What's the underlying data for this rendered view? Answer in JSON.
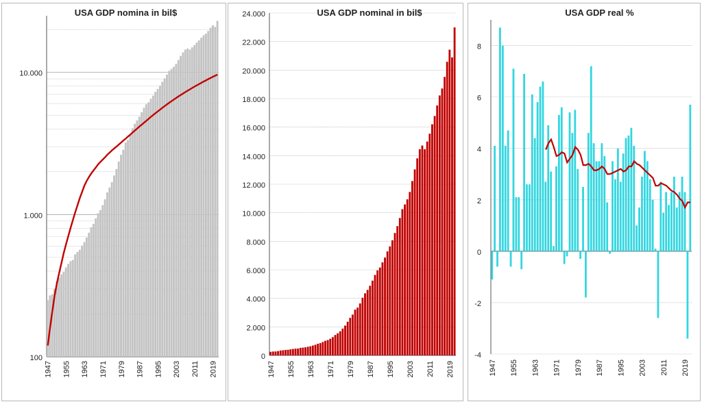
{
  "colors": {
    "gray_bar": "#c3c3c3",
    "red_line": "#c00000",
    "red_bar": "#c00000",
    "cyan_bar": "#33d6e0",
    "grid": "#a0a0a0"
  },
  "x_tick_labels": [
    "1947",
    "1955",
    "1963",
    "1971",
    "1979",
    "1987",
    "1995",
    "2003",
    "2011",
    "2019"
  ],
  "chart_data": [
    {
      "type": "bar",
      "title": "USA GDP nomina  in bil$",
      "yscale": "log",
      "ylim": [
        100,
        25000
      ],
      "y_tick_labels": [
        "100",
        "1.000",
        "10.000"
      ],
      "x_range": [
        1947,
        2021
      ],
      "series": [
        {
          "values": [
            250,
            270,
            275,
            300,
            340,
            360,
            380,
            395,
            425,
            450,
            470,
            480,
            525,
            545,
            565,
            605,
            640,
            690,
            745,
            815,
            860,
            940,
            1020,
            1075,
            1165,
            1280,
            1430,
            1550,
            1690,
            1880,
            2090,
            2360,
            2630,
            2860,
            3210,
            3350,
            3640,
            4040,
            4350,
            4590,
            4880,
            5240,
            5640,
            5960,
            6160,
            6520,
            6860,
            7290,
            7640,
            8070,
            8580,
            9060,
            9630,
            10250,
            10580,
            10940,
            11460,
            12220,
            13040,
            13810,
            14450,
            14710,
            14450,
            14990,
            15540,
            16200,
            16780,
            17520,
            18220,
            18710,
            19520,
            20580,
            21430,
            20890,
            22990
          ]
        },
        {
          "values": [
            120,
            160,
            210,
            270,
            330,
            390,
            460,
            540,
            620,
            710,
            810,
            920,
            1040,
            1170,
            1310,
            1450,
            1600,
            1730,
            1840,
            1950,
            2050,
            2150,
            2260,
            2350,
            2440,
            2530,
            2640,
            2730,
            2830,
            2920,
            3010,
            3110,
            3210,
            3320,
            3420,
            3540,
            3650,
            3780,
            3900,
            4030,
            4160,
            4290,
            4430,
            4570,
            4720,
            4870,
            5020,
            5170,
            5320,
            5480,
            5640,
            5800,
            5960,
            6120,
            6280,
            6440,
            6610,
            6770,
            6940,
            7100,
            7270,
            7430,
            7600,
            7770,
            7940,
            8110,
            8280,
            8450,
            8620,
            8790,
            8960,
            9140,
            9310,
            9480,
            9650
          ]
        }
      ]
    },
    {
      "type": "bar",
      "title": "USA GDP nominal in bil$",
      "ylim": [
        0,
        24000
      ],
      "y_tick_labels": [
        "0",
        "2.000",
        "4.000",
        "6.000",
        "8.000",
        "10.000",
        "12.000",
        "14.000",
        "16.000",
        "18.000",
        "20.000",
        "22.000",
        "24.000"
      ],
      "x_range": [
        1947,
        2021
      ],
      "values": [
        250,
        270,
        275,
        300,
        340,
        360,
        380,
        395,
        425,
        450,
        470,
        480,
        525,
        545,
        565,
        605,
        640,
        690,
        745,
        815,
        860,
        940,
        1020,
        1075,
        1165,
        1280,
        1430,
        1550,
        1690,
        1880,
        2090,
        2360,
        2630,
        2860,
        3210,
        3350,
        3640,
        4040,
        4350,
        4590,
        4880,
        5240,
        5640,
        5960,
        6160,
        6520,
        6860,
        7290,
        7640,
        8070,
        8580,
        9060,
        9630,
        10250,
        10580,
        10940,
        11460,
        12220,
        13040,
        13810,
        14450,
        14710,
        14450,
        14990,
        15540,
        16200,
        16780,
        17520,
        18220,
        18710,
        19520,
        20580,
        21430,
        20890,
        22990
      ]
    },
    {
      "type": "bar",
      "title": "USA GDP real %",
      "ylim": [
        -4,
        9
      ],
      "y_tick_labels": [
        "-4",
        "-2",
        "0",
        "2",
        "4",
        "6",
        "8"
      ],
      "x_range": [
        1947,
        2021
      ],
      "series": [
        {
          "values": [
            -1.1,
            4.1,
            -0.6,
            8.7,
            8.0,
            4.1,
            4.7,
            -0.6,
            7.1,
            2.1,
            2.1,
            -0.7,
            6.9,
            2.6,
            2.6,
            6.1,
            4.4,
            5.8,
            6.4,
            6.6,
            2.7,
            4.9,
            3.1,
            0.2,
            3.3,
            5.3,
            5.6,
            -0.5,
            -0.2,
            5.4,
            4.6,
            5.5,
            3.2,
            -0.3,
            2.5,
            -1.8,
            4.6,
            7.2,
            4.2,
            3.5,
            3.5,
            4.2,
            3.7,
            1.9,
            -0.1,
            3.5,
            2.8,
            4.0,
            2.7,
            3.8,
            4.4,
            4.5,
            4.8,
            4.1,
            1.0,
            1.7,
            2.9,
            3.9,
            3.5,
            2.8,
            2.0,
            0.1,
            -2.6,
            2.7,
            1.5,
            2.3,
            1.8,
            2.3,
            2.9,
            1.7,
            2.3,
            2.9,
            2.3,
            -3.4,
            5.7
          ]
        },
        {
          "values": [
            null,
            null,
            null,
            null,
            null,
            null,
            null,
            null,
            null,
            null,
            null,
            null,
            null,
            null,
            null,
            null,
            null,
            null,
            null,
            null,
            3.95,
            4.2,
            4.35,
            4.05,
            3.7,
            3.75,
            3.85,
            3.8,
            3.45,
            3.6,
            3.75,
            4.05,
            3.95,
            3.75,
            3.35,
            3.35,
            3.4,
            3.3,
            3.15,
            3.15,
            3.2,
            3.3,
            3.2,
            3.0,
            3.0,
            3.05,
            3.1,
            3.15,
            3.2,
            3.1,
            3.15,
            3.3,
            3.3,
            3.5,
            3.4,
            3.35,
            3.25,
            3.15,
            3.05,
            2.95,
            2.85,
            2.55,
            2.55,
            2.65,
            2.6,
            2.55,
            2.45,
            2.35,
            2.3,
            2.2,
            2.05,
            1.95,
            1.7,
            1.9,
            1.9
          ]
        }
      ]
    }
  ]
}
